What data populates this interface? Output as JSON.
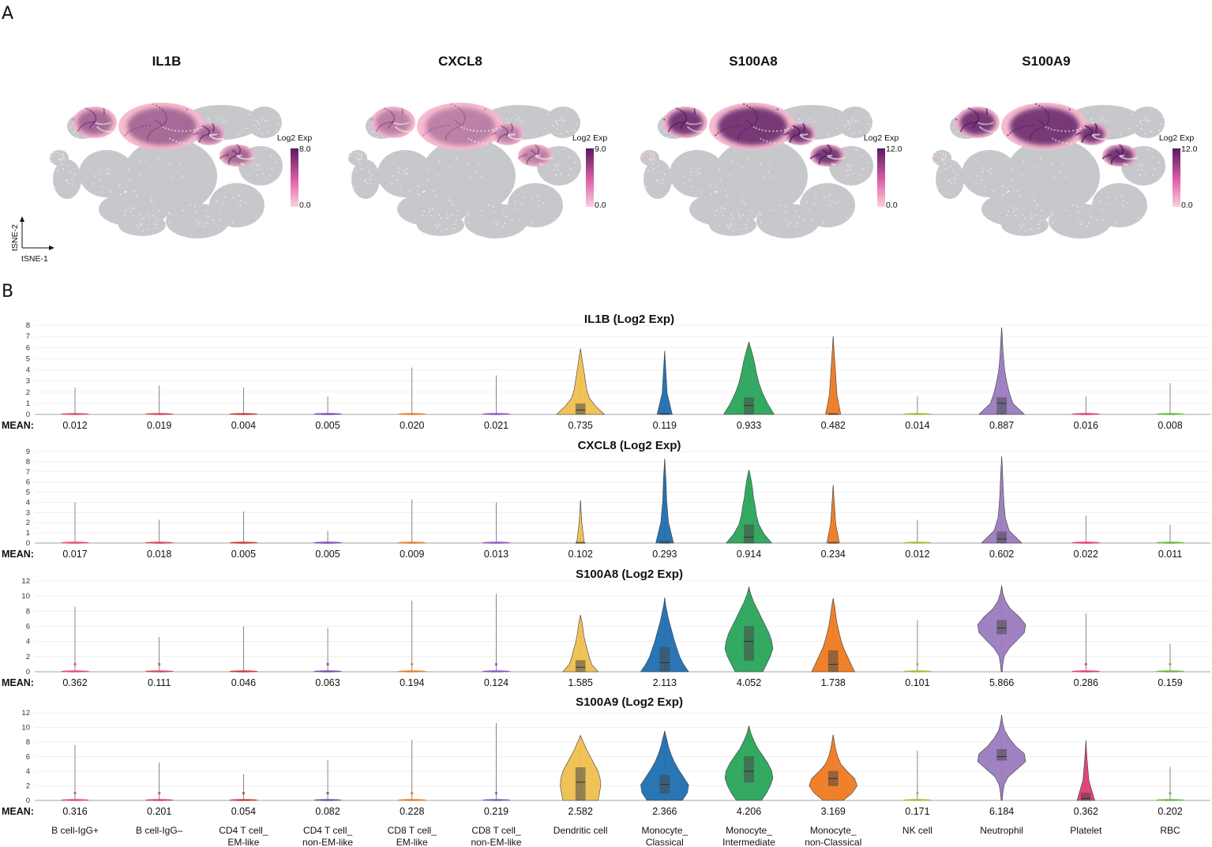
{
  "panel_labels": {
    "a": "A",
    "b": "B"
  },
  "tsne": {
    "axis_x": "tSNE-1",
    "axis_y": "tSNE-2",
    "colorbar_title": "Log2 Exp",
    "colors": {
      "background_cells": "#c6c8cc",
      "low": "#f7b8cc",
      "high": "#5a1a63"
    },
    "maps": [
      {
        "gene": "IL1B",
        "cb_max": "8.0",
        "cb_min": "0.0",
        "intensity": 0.55
      },
      {
        "gene": "CXCL8",
        "cb_max": "9.0",
        "cb_min": "0.0",
        "intensity": 0.4
      },
      {
        "gene": "S100A8",
        "cb_max": "12.0",
        "cb_min": "0.0",
        "intensity": 0.9
      },
      {
        "gene": "S100A9",
        "cb_max": "12.0",
        "cb_min": "0.0",
        "intensity": 0.9
      }
    ]
  },
  "chart_data": {
    "type": "violin",
    "mean_prefix": "MEAN:",
    "categories": [
      [
        "B cell-IgG+",
        ""
      ],
      [
        "B cell-IgG–",
        ""
      ],
      [
        "CD4 T cell_",
        "EM-like"
      ],
      [
        "CD4 T cell_",
        "non-EM-like"
      ],
      [
        "CD8 T cell_",
        "EM-like"
      ],
      [
        "CD8 T cell_",
        "non-EM-like"
      ],
      [
        "Dendritic cell",
        ""
      ],
      [
        "Monocyte_",
        "Classical"
      ],
      [
        "Monocyte_",
        "Intermediate"
      ],
      [
        "Monocyte_",
        "non-Classical"
      ],
      [
        "NK cell",
        ""
      ],
      [
        "Neutrophil",
        ""
      ],
      [
        "Platelet",
        ""
      ],
      [
        "RBC",
        ""
      ]
    ],
    "colors": [
      "#e05070",
      "#d24a5f",
      "#cc3f3f",
      "#7a50b0",
      "#e08030",
      "#8a5cb8",
      "#f0c050",
      "#1f6eb0",
      "#2aa55a",
      "#f07a20",
      "#a8b840",
      "#9b7cc0",
      "#e04070",
      "#6ab840"
    ],
    "series": [
      {
        "title": "IL1B (Log2 Exp)",
        "ylim": [
          0,
          8
        ],
        "yticks": [
          "0",
          "1",
          "2",
          "3",
          "4",
          "5",
          "6",
          "7",
          "8"
        ],
        "means": [
          "0.012",
          "0.019",
          "0.004",
          "0.005",
          "0.020",
          "0.021",
          "0.735",
          "0.119",
          "0.933",
          "0.482",
          "0.014",
          "0.887",
          "0.016",
          "0.008"
        ],
        "max": [
          2.4,
          2.6,
          2.4,
          1.6,
          4.2,
          3.5,
          5.9,
          5.7,
          6.5,
          7.0,
          1.6,
          7.8,
          1.6,
          2.8
        ],
        "violins": [
          null,
          null,
          null,
          null,
          null,
          null,
          {
            "w": [
              0.95,
              0.6,
              0.35,
              0.25,
              0.2,
              0.15,
              0.1,
              0.05
            ],
            "q1": 0,
            "med": 0.4,
            "q3": 0.95
          },
          {
            "w": [
              0.3,
              0.1,
              0.05
            ],
            "q1": 0,
            "med": 0,
            "q3": 0.1
          },
          {
            "w": [
              1.0,
              0.75,
              0.55,
              0.4,
              0.3,
              0.22,
              0.12
            ],
            "q1": 0,
            "med": 0.8,
            "q3": 1.5
          },
          {
            "w": [
              0.3,
              0.15,
              0.1,
              0.05
            ],
            "q1": 0,
            "med": 0,
            "q3": 0.1
          },
          null,
          {
            "w": [
              0.9,
              0.45,
              0.3,
              0.2,
              0.12,
              0.08,
              0.05,
              0.03
            ],
            "q1": 0,
            "med": 1.0,
            "q3": 1.5
          },
          null,
          null
        ]
      },
      {
        "title": "CXCL8 (Log2 Exp)",
        "ylim": [
          0,
          9
        ],
        "yticks": [
          "0",
          "1",
          "2",
          "3",
          "4",
          "5",
          "6",
          "7",
          "8",
          "9"
        ],
        "means": [
          "0.017",
          "0.018",
          "0.005",
          "0.005",
          "0.009",
          "0.013",
          "0.102",
          "0.293",
          "0.914",
          "0.234",
          "0.012",
          "0.602",
          "0.022",
          "0.011"
        ],
        "max": [
          4.0,
          2.3,
          3.1,
          1.2,
          4.3,
          4.0,
          4.2,
          8.3,
          7.2,
          5.7,
          2.3,
          8.5,
          2.7,
          1.8
        ],
        "violins": [
          null,
          null,
          null,
          null,
          null,
          null,
          {
            "w": [
              0.15,
              0.05
            ],
            "q1": 0,
            "med": 0,
            "q3": 0.1
          },
          {
            "w": [
              0.35,
              0.15,
              0.08,
              0.05
            ],
            "q1": 0,
            "med": 0,
            "q3": 0.2
          },
          {
            "w": [
              0.9,
              0.6,
              0.4,
              0.3,
              0.25,
              0.18,
              0.14,
              0.08
            ],
            "q1": 0,
            "med": 0.6,
            "q3": 1.8
          },
          {
            "w": [
              0.25,
              0.1,
              0.05
            ],
            "q1": 0,
            "med": 0,
            "q3": 0.1
          },
          null,
          {
            "w": [
              0.8,
              0.3,
              0.15,
              0.1,
              0.07,
              0.05,
              0.03
            ],
            "q1": 0,
            "med": 0.4,
            "q3": 1.1
          },
          null,
          null
        ]
      },
      {
        "title": "S100A8 (Log2 Exp)",
        "ylim": [
          0,
          12
        ],
        "yticks": [
          "0",
          "2",
          "4",
          "6",
          "8",
          "10",
          "12"
        ],
        "means": [
          "0.362",
          "0.111",
          "0.046",
          "0.063",
          "0.194",
          "0.124",
          "1.585",
          "2.113",
          "4.052",
          "1.738",
          "0.101",
          "5.866",
          "0.286",
          "0.159"
        ],
        "max": [
          8.6,
          4.6,
          6.0,
          5.8,
          9.4,
          10.3,
          7.5,
          9.8,
          11.2,
          9.7,
          6.8,
          11.4,
          7.7,
          3.7
        ],
        "violins": [
          null,
          null,
          null,
          null,
          null,
          null,
          {
            "w": [
              0.7,
              0.45,
              0.35,
              0.28,
              0.2,
              0.14,
              0.1,
              0.06
            ],
            "q1": 0,
            "med": 0.6,
            "q3": 1.5
          },
          {
            "w": [
              0.95,
              0.75,
              0.6,
              0.5,
              0.4,
              0.32,
              0.24,
              0.16,
              0.1,
              0.04
            ],
            "q1": 0,
            "med": 1.2,
            "q3": 3.2
          },
          {
            "w": [
              0.55,
              0.7,
              0.85,
              0.95,
              0.9,
              0.8,
              0.65,
              0.5,
              0.35,
              0.2,
              0.08
            ],
            "q1": 1.5,
            "med": 4.0,
            "q3": 6.0
          },
          {
            "w": [
              0.85,
              0.7,
              0.55,
              0.4,
              0.3,
              0.22,
              0.15,
              0.1,
              0.06
            ],
            "q1": 0,
            "med": 1.0,
            "q3": 2.8
          },
          null,
          {
            "w": [
              0.02,
              0.05,
              0.1,
              0.3,
              0.6,
              0.9,
              0.95,
              0.7,
              0.35,
              0.15,
              0.05
            ],
            "q1": 5.0,
            "med": 5.8,
            "q3": 6.8
          },
          null,
          null
        ]
      },
      {
        "title": "S100A9 (Log2 Exp)",
        "ylim": [
          0,
          12
        ],
        "yticks": [
          "0",
          "2",
          "4",
          "6",
          "8",
          "10",
          "12"
        ],
        "means": [
          "0.316",
          "0.201",
          "0.054",
          "0.082",
          "0.228",
          "0.219",
          "2.582",
          "2.366",
          "4.206",
          "3.169",
          "0.171",
          "6.184",
          "0.362",
          "0.202"
        ],
        "max": [
          7.6,
          5.2,
          3.6,
          5.5,
          8.3,
          10.6,
          8.9,
          9.5,
          10.2,
          9.0,
          6.8,
          11.7,
          8.2,
          4.6
        ],
        "violins": [
          null,
          null,
          null,
          null,
          null,
          null,
          {
            "w": [
              0.7,
              0.75,
              0.8,
              0.78,
              0.7,
              0.55,
              0.4,
              0.25,
              0.12
            ],
            "q1": 0,
            "med": 2.5,
            "q3": 4.5
          },
          {
            "w": [
              0.7,
              0.9,
              0.95,
              0.75,
              0.55,
              0.38,
              0.25,
              0.15,
              0.08
            ],
            "q1": 1.0,
            "med": 2.2,
            "q3": 3.4
          },
          {
            "w": [
              0.5,
              0.7,
              0.85,
              0.95,
              0.9,
              0.75,
              0.55,
              0.35,
              0.2,
              0.08
            ],
            "q1": 2.5,
            "med": 4.0,
            "q3": 6.0
          },
          {
            "w": [
              0.4,
              0.75,
              0.95,
              0.85,
              0.55,
              0.3,
              0.18,
              0.1,
              0.05
            ],
            "q1": 2.0,
            "med": 3.0,
            "q3": 4.0
          },
          null,
          {
            "w": [
              0.02,
              0.05,
              0.1,
              0.25,
              0.6,
              0.95,
              0.9,
              0.55,
              0.3,
              0.12,
              0.04
            ],
            "q1": 5.5,
            "med": 6.0,
            "q3": 7.0
          },
          {
            "w": [
              0.35,
              0.12,
              0.05
            ],
            "q1": 0,
            "med": 0.3,
            "q3": 1.0
          },
          null
        ]
      }
    ]
  }
}
